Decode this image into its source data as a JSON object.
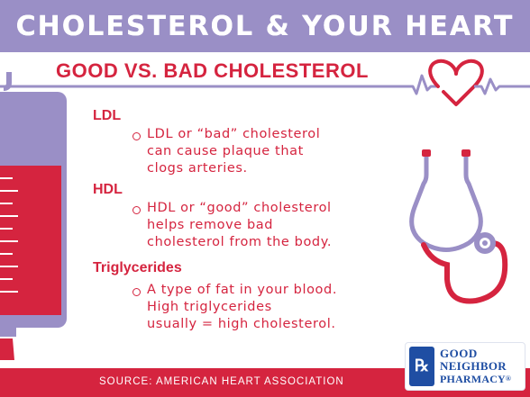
{
  "header": {
    "title": "CHOLESTEROL & YOUR HEART"
  },
  "subtitle": "GOOD VS. BAD CHOLESTEROL",
  "sections": [
    {
      "heading": "LDL",
      "lines": [
        "LDL or “bad” cholesterol",
        "can cause plaque that",
        "clogs arteries."
      ]
    },
    {
      "heading": "HDL",
      "lines": [
        "HDL or “good” cholesterol",
        "helps remove bad",
        "cholesterol from the body."
      ]
    },
    {
      "heading": "Triglycerides",
      "lines": [
        "A type of fat in your blood.",
        "High triglycerides",
        "usually = high cholesterol."
      ]
    }
  ],
  "footer": {
    "source": "SOURCE: AMERICAN HEART ASSOCIATION"
  },
  "logo": {
    "rx": "℞",
    "line1": "GOOD",
    "line2": "NEIGHBOR",
    "line3": "PHARMACY",
    "mark": "®"
  },
  "colors": {
    "banner": "#9a8fc6",
    "accent_red": "#d5243f",
    "purple_line": "#9a8fc6",
    "logo_blue": "#1f4ea3"
  },
  "icons": [
    "heart-pulse-icon",
    "blood-bag-icon",
    "stethoscope-icon"
  ]
}
